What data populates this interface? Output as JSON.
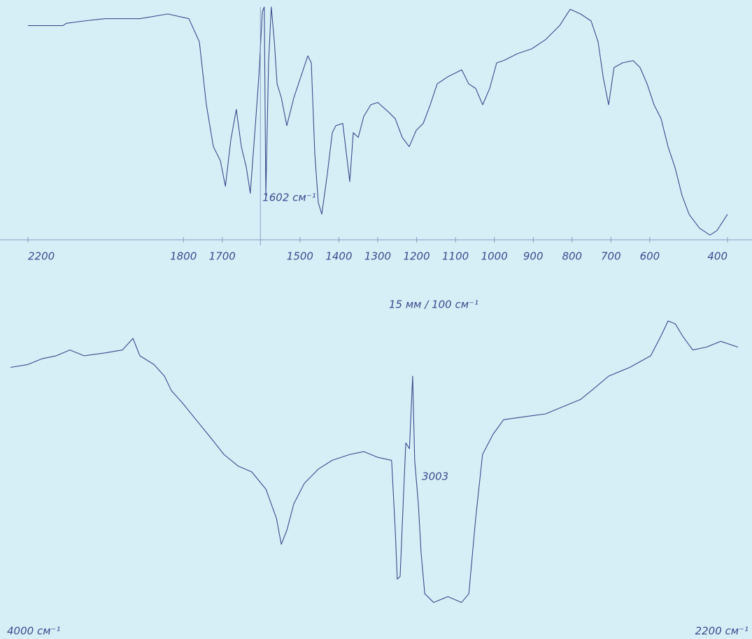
{
  "chart_data": [
    {
      "type": "line",
      "color": "#3c4a8c",
      "x": [
        2200,
        2110,
        2101,
        2056,
        2002,
        1912,
        1840,
        1786,
        1759,
        1741,
        1723,
        1705,
        1692,
        1678,
        1664,
        1651,
        1638,
        1628,
        1615,
        1606,
        1597,
        1592,
        1588,
        1581,
        1574,
        1566,
        1559,
        1548,
        1534,
        1516,
        1498,
        1480,
        1471,
        1462,
        1453,
        1444,
        1430,
        1417,
        1408,
        1390,
        1372,
        1363,
        1350,
        1336,
        1318,
        1300,
        1273,
        1255,
        1237,
        1219,
        1201,
        1183,
        1165,
        1147,
        1120,
        1084,
        1066,
        1048,
        1030,
        1012,
        994,
        976,
        940,
        904,
        868,
        832,
        805,
        778,
        751,
        733,
        720,
        706,
        692,
        670,
        643,
        625,
        607,
        589,
        571,
        553,
        535,
        517,
        499,
        472,
        445,
        427,
        400
      ],
      "values": [
        92,
        92,
        93,
        94,
        95,
        95,
        97,
        95,
        85,
        58,
        40,
        34,
        23,
        43,
        56,
        40,
        31,
        20,
        49,
        70,
        98,
        100,
        19,
        76,
        100,
        85,
        67,
        61,
        49,
        61,
        70,
        79,
        76,
        37,
        16,
        11,
        28,
        46,
        49,
        50,
        25,
        46,
        44,
        53,
        58,
        59,
        55,
        52,
        44,
        40,
        47,
        50,
        58,
        67,
        70,
        73,
        67,
        65,
        58,
        65,
        76,
        77,
        80,
        82,
        86,
        92,
        99,
        97,
        94,
        85,
        70,
        58,
        74,
        76,
        77,
        74,
        67,
        58,
        52,
        40,
        31,
        19,
        11,
        5,
        2,
        4,
        11
      ],
      "xlim": [
        2200,
        400
      ],
      "ylim": [
        0,
        100
      ],
      "xticks": [
        2200,
        1800,
        1700,
        1500,
        1400,
        1300,
        1200,
        1100,
        1000,
        900,
        800,
        700,
        600,
        400
      ],
      "x_label": "15 мм / 100 см⁻¹",
      "annotations": [
        {
          "x": 1602,
          "text": "1602 см⁻¹"
        }
      ]
    },
    {
      "type": "line",
      "color": "#3c4a8c",
      "x": [
        4000,
        3957,
        3922,
        3887,
        3853,
        3818,
        3766,
        3723,
        3697,
        3680,
        3645,
        3619,
        3602,
        3576,
        3541,
        3506,
        3472,
        3437,
        3403,
        3368,
        3342,
        3330,
        3316,
        3299,
        3273,
        3238,
        3204,
        3160,
        3126,
        3091,
        3057,
        3048,
        3043,
        3036,
        3027,
        3022,
        3013,
        3005,
        3000,
        2991,
        2984,
        2975,
        2953,
        2918,
        2884,
        2866,
        2849,
        2832,
        2806,
        2780,
        2728,
        2676,
        2624,
        2589,
        2554,
        2520,
        2468,
        2416,
        2390,
        2373,
        2355,
        2338,
        2312,
        2278,
        2243,
        2200
      ],
      "values": [
        83,
        84,
        86,
        87,
        89,
        87,
        88,
        89,
        93,
        87,
        84,
        80,
        75,
        71,
        65,
        59,
        53,
        49,
        47,
        41,
        31,
        22,
        27,
        36,
        43,
        48,
        51,
        53,
        54,
        52,
        51,
        27,
        10,
        11,
        41,
        57,
        55,
        80,
        51,
        36,
        19,
        5,
        2,
        4,
        2,
        5,
        31,
        53,
        60,
        65,
        66,
        67,
        70,
        72,
        76,
        80,
        83,
        87,
        94,
        99,
        98,
        94,
        89,
        90,
        92,
        90
      ],
      "xlim": [
        4000,
        2200
      ],
      "ylim": [
        0,
        100
      ],
      "xticks": [
        {
          "value": 4000,
          "label": "4000 см⁻¹"
        },
        {
          "value": 2200,
          "label": "2200 см⁻¹"
        }
      ],
      "annotations": [
        {
          "x": 3003,
          "text": "3003"
        }
      ]
    }
  ]
}
